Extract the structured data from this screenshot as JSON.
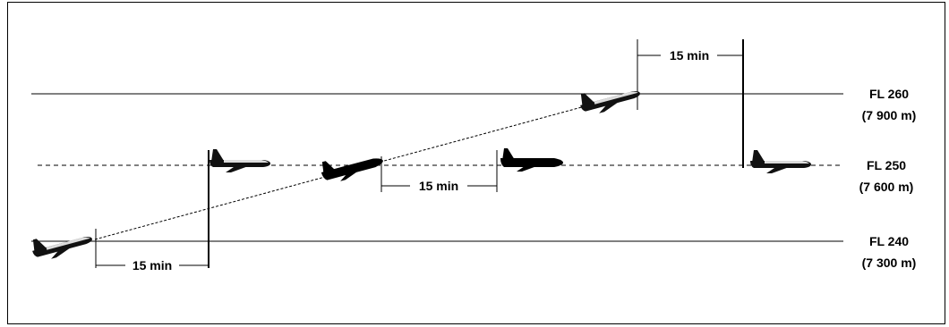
{
  "flight_levels": [
    {
      "id": "fl260",
      "label": "FL 260",
      "metric": "(7 900 m)"
    },
    {
      "id": "fl250",
      "label": "FL 250",
      "metric": "(7 600 m)"
    },
    {
      "id": "fl240",
      "label": "FL 240",
      "metric": "(7 300 m)"
    }
  ],
  "intervals": [
    {
      "id": "interval-climb-start",
      "label": "15 min"
    },
    {
      "id": "interval-crossing",
      "label": "15 min"
    },
    {
      "id": "interval-climb-end",
      "label": "15 min"
    }
  ],
  "colors": {
    "line": "#000000",
    "aircraft_body": "#111111",
    "aircraft_highlight": "#ffffff"
  }
}
